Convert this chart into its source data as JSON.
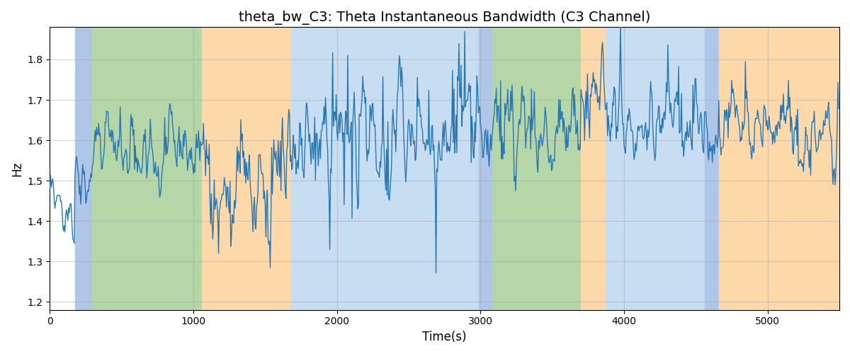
{
  "title": "theta_bw_C3: Theta Instantaneous Bandwidth (C3 Channel)",
  "xlabel": "Time(s)",
  "ylabel": "Hz",
  "ylim": [
    1.18,
    1.88
  ],
  "xlim": [
    0,
    5500
  ],
  "yticks": [
    1.2,
    1.3,
    1.4,
    1.5,
    1.6,
    1.7,
    1.8
  ],
  "xticks": [
    0,
    1000,
    2000,
    3000,
    4000,
    5000
  ],
  "line_color": "#2878b5",
  "line_width": 1.0,
  "bg_segments": [
    {
      "xstart": 0,
      "xend": 175,
      "color": "#ffffff"
    },
    {
      "xstart": 175,
      "xend": 295,
      "color": "#aec6e8"
    },
    {
      "xstart": 295,
      "xend": 1060,
      "color": "#b5d6a7"
    },
    {
      "xstart": 1060,
      "xend": 1680,
      "color": "#fdd9aa"
    },
    {
      "xstart": 1680,
      "xend": 2990,
      "color": "#c7ddf2"
    },
    {
      "xstart": 2990,
      "xend": 3080,
      "color": "#aec6e8"
    },
    {
      "xstart": 3080,
      "xend": 3700,
      "color": "#b5d6a7"
    },
    {
      "xstart": 3700,
      "xend": 3870,
      "color": "#fdd9aa"
    },
    {
      "xstart": 3870,
      "xend": 4560,
      "color": "#c7ddf2"
    },
    {
      "xstart": 4560,
      "xend": 4660,
      "color": "#aec6e8"
    },
    {
      "xstart": 4660,
      "xend": 5550,
      "color": "#fdd9aa"
    }
  ],
  "grid_color": "#aaaaaa",
  "grid_alpha": 0.5,
  "title_fontsize": 14,
  "label_fontsize": 12,
  "fig_facecolor": "#ffffff"
}
